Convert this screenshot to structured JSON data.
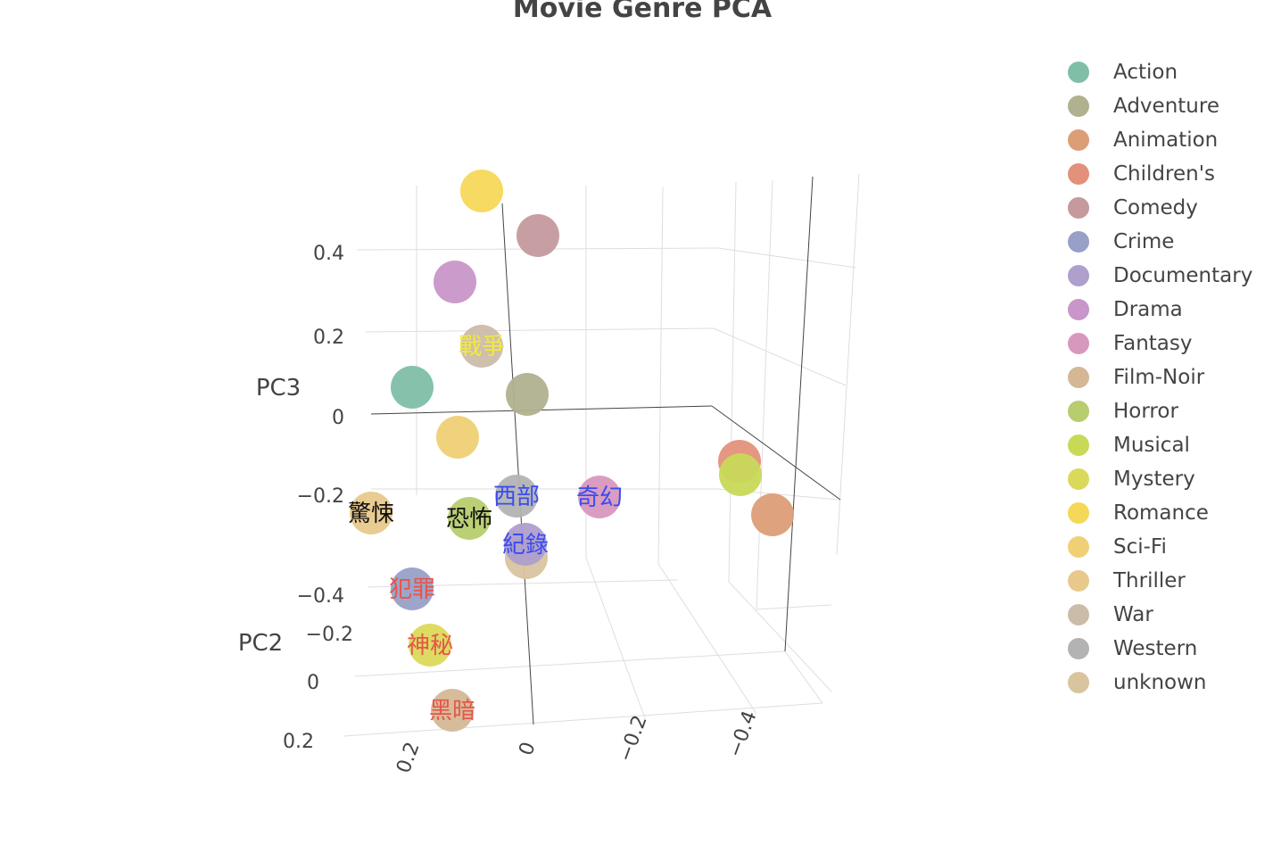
{
  "chart_data": {
    "type": "scatter3d",
    "title": "Movie Genre PCA",
    "axes": {
      "z_label": "PC3",
      "y_label": "PC2",
      "x_label": "",
      "z_ticks": [
        "0.4",
        "0.2",
        "0",
        "−0.2",
        "−0.4"
      ],
      "y_ticks": [
        "−0.2",
        "0",
        "0.2"
      ],
      "x_ticks": [
        "0.2",
        "0",
        "−0.2",
        "−0.4"
      ]
    },
    "legend_position": "right",
    "series": [
      {
        "name": "Action",
        "color": "#7fbfa7",
        "annotation": ""
      },
      {
        "name": "Adventure",
        "color": "#b0b18e",
        "annotation": ""
      },
      {
        "name": "Animation",
        "color": "#dc9e77",
        "annotation": ""
      },
      {
        "name": "Children's",
        "color": "#e3917a",
        "annotation": ""
      },
      {
        "name": "Comedy",
        "color": "#c49a9d",
        "annotation": ""
      },
      {
        "name": "Crime",
        "color": "#99a0c8",
        "annotation": "犯罪",
        "annotation_color": "#e5564a"
      },
      {
        "name": "Documentary",
        "color": "#ae9fcc",
        "annotation": "紀錄",
        "annotation_color": "#3a4cf0"
      },
      {
        "name": "Drama",
        "color": "#c896c8",
        "annotation": ""
      },
      {
        "name": "Fantasy",
        "color": "#d898be",
        "annotation": "奇幻",
        "annotation_color": "#3a4cf0"
      },
      {
        "name": "Film-Noir",
        "color": "#d4b896",
        "annotation": "黑暗",
        "annotation_color": "#e5564a"
      },
      {
        "name": "Horror",
        "color": "#b7cd6e",
        "annotation": "恐怖",
        "annotation_color": "#111111"
      },
      {
        "name": "Musical",
        "color": "#c8d958",
        "annotation": ""
      },
      {
        "name": "Mystery",
        "color": "#dbd95a",
        "annotation": "神秘",
        "annotation_color": "#e5564a"
      },
      {
        "name": "Romance",
        "color": "#f5d858",
        "annotation": ""
      },
      {
        "name": "Sci-Fi",
        "color": "#efd075",
        "annotation": ""
      },
      {
        "name": "Thriller",
        "color": "#e8c98c",
        "annotation": "驚悚",
        "annotation_color": "#111111"
      },
      {
        "name": "War",
        "color": "#cbbcaa",
        "annotation": "戰爭",
        "annotation_color": "#f1ea3c"
      },
      {
        "name": "Western",
        "color": "#b3b3b3",
        "annotation": "西部",
        "annotation_color": "#3a4cf0"
      },
      {
        "name": "unknown",
        "color": "#d9c4a0",
        "annotation": ""
      }
    ]
  }
}
